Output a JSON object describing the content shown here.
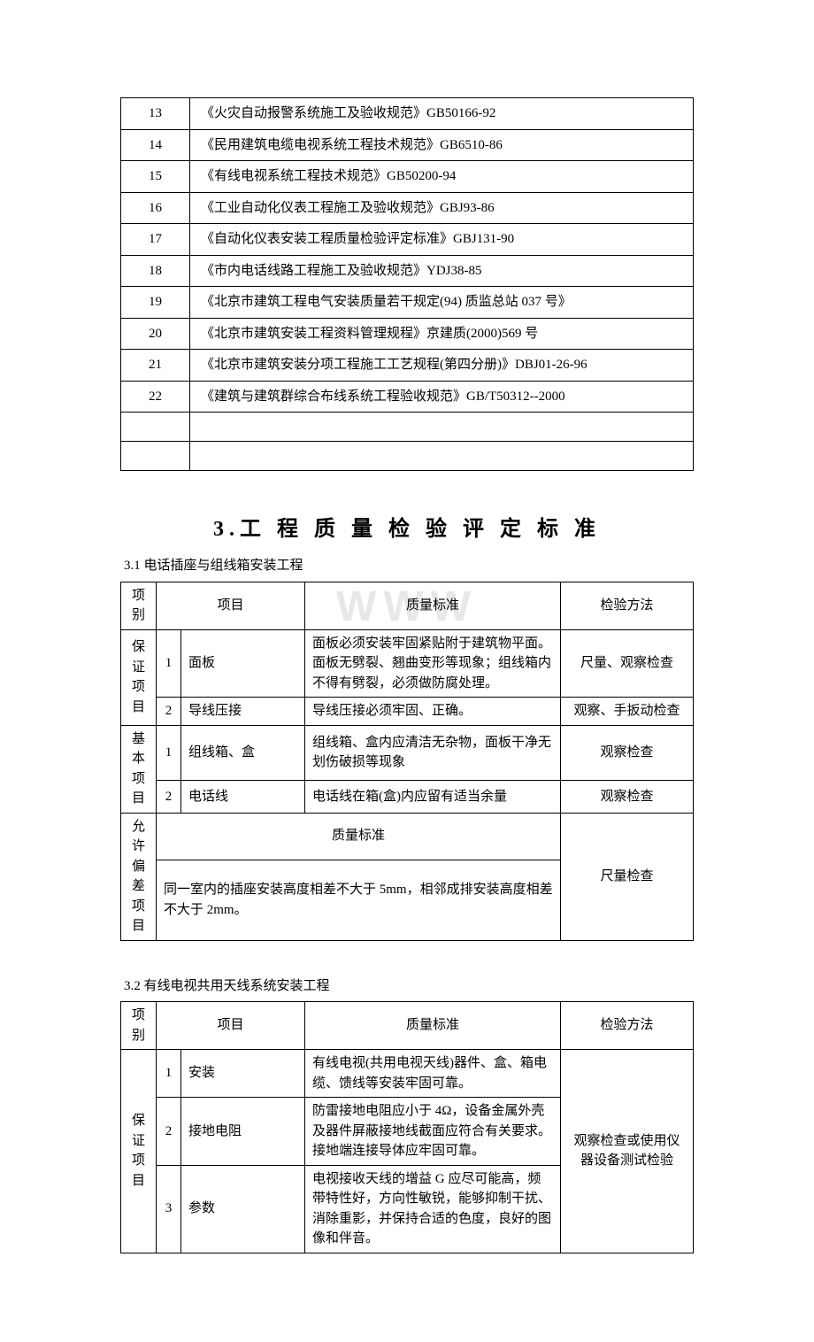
{
  "standards": {
    "rows": [
      {
        "num": "13",
        "text": "《火灾自动报警系统施工及验收规范》GB50166-92"
      },
      {
        "num": "14",
        "text": "《民用建筑电缆电视系统工程技术规范》GB6510-86"
      },
      {
        "num": "15",
        "text": "《有线电视系统工程技术规范》GB50200-94"
      },
      {
        "num": "16",
        "text": "《工业自动化仪表工程施工及验收规范》GBJ93-86"
      },
      {
        "num": "17",
        "text": "《自动化仪表安装工程质量检验评定标准》GBJ131-90"
      },
      {
        "num": "18",
        "text": "《市内电话线路工程施工及验收规范》YDJ38-85"
      },
      {
        "num": "19",
        "text": "《北京市建筑工程电气安装质量若干规定(94) 质监总站 037 号》"
      },
      {
        "num": "20",
        "text": "《北京市建筑安装工程资料管理规程》京建质(2000)569 号"
      },
      {
        "num": "21",
        "text": "《北京市建筑安装分项工程施工工艺规程(第四分册)》DBJ01-26-96"
      },
      {
        "num": "22",
        "text": "《建筑与建筑群综合布线系统工程验收规范》GB/T50312--2000"
      },
      {
        "num": "",
        "text": ""
      },
      {
        "num": "",
        "text": ""
      }
    ]
  },
  "heading": "3.工 程 质 量 检 验 评 定 标 准",
  "watermark": "WWW",
  "table31": {
    "title": "3.1 电话插座与组线箱安装工程",
    "headers": {
      "category": "项别",
      "item": "项目",
      "standard": "质量标准",
      "method": "检验方法"
    },
    "guarantee_label": "保证项目",
    "basic_label": "基本项目",
    "deviation_label": "允许偏差项目",
    "rows": {
      "g1": {
        "num": "1",
        "item": "面板",
        "standard": "面板必须安装牢固紧贴附于建筑物平面。面板无劈裂、翘曲变形等现象；组线箱内不得有劈裂，必须做防腐处理。",
        "method": "尺量、观察检查"
      },
      "g2": {
        "num": "2",
        "item": "导线压接",
        "standard": "导线压接必须牢固、正确。",
        "method": "观察、手扳动检查"
      },
      "b1": {
        "num": "1",
        "item": "组线箱、盒",
        "standard": "组线箱、盒内应清洁无杂物，面板干净无划伤破损等现象",
        "method": "观察检查"
      },
      "b2": {
        "num": "2",
        "item": "电话线",
        "standard": "电话线在箱(盒)内应留有适当余量",
        "method": "观察检查"
      },
      "dev_header": "质量标准",
      "dev_text": "同一室内的插座安装高度相差不大于 5mm，相邻成排安装高度相差不大于 2mm。",
      "dev_method": "尺量检查"
    }
  },
  "table32": {
    "title": "3.2 有线电视共用天线系统安装工程",
    "headers": {
      "category": "项别",
      "item": "项目",
      "standard": "质量标准",
      "method": "检验方法"
    },
    "guarantee_label": "保证项目",
    "rows": {
      "g1": {
        "num": "1",
        "item": "安装",
        "standard": "有线电视(共用电视天线)器件、盒、箱电缆、馈线等安装牢固可靠。"
      },
      "g2": {
        "num": "2",
        "item": "接地电阻",
        "standard": "防雷接地电阻应小于 4Ω，设备金属外壳及器件屏蔽接地线截面应符合有关要求。接地端连接导体应牢固可靠。"
      },
      "g3": {
        "num": "3",
        "item": "参数",
        "standard": "电视接收天线的增益 G 应尽可能高，频带特性好，方向性敏锐，能够抑制干扰、消除重影，并保持合适的色度，良好的图像和伴音。"
      },
      "method": "观察检查或使用仪器设备测试检验"
    }
  }
}
